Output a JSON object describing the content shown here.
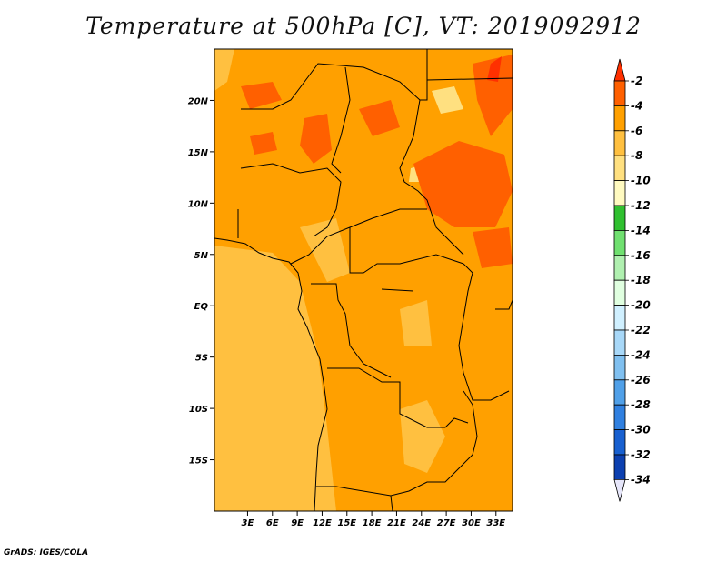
{
  "title": "Temperature at 500hPa [C], VT: 2019092912",
  "footer": "GrADS: IGES/COLA",
  "map": {
    "lon_range": [
      -1,
      35
    ],
    "lat_range": [
      -20,
      25
    ],
    "lat_ticks": [
      {
        "value": 20,
        "label": "20N"
      },
      {
        "value": 15,
        "label": "15N"
      },
      {
        "value": 10,
        "label": "10N"
      },
      {
        "value": 5,
        "label": "5N"
      },
      {
        "value": 0,
        "label": "EQ"
      },
      {
        "value": -5,
        "label": "5S"
      },
      {
        "value": -10,
        "label": "10S"
      },
      {
        "value": -15,
        "label": "15S"
      }
    ],
    "lon_ticks": [
      {
        "value": 3,
        "label": "3E"
      },
      {
        "value": 6,
        "label": "6E"
      },
      {
        "value": 9,
        "label": "9E"
      },
      {
        "value": 12,
        "label": "12E"
      },
      {
        "value": 15,
        "label": "15E"
      },
      {
        "value": 18,
        "label": "18E"
      },
      {
        "value": 21,
        "label": "21E"
      },
      {
        "value": 24,
        "label": "24E"
      },
      {
        "value": 27,
        "label": "27E"
      },
      {
        "value": 30,
        "label": "30E"
      },
      {
        "value": 33,
        "label": "33E"
      }
    ],
    "dominant_color": "#ffa000"
  },
  "colorbar": {
    "labels": [
      "-2",
      "-4",
      "-6",
      "-8",
      "-10",
      "-12",
      "-14",
      "-16",
      "-18",
      "-20",
      "-22",
      "-24",
      "-26",
      "-28",
      "-30",
      "-32",
      "-34"
    ],
    "top_triangle_color": "#ff3000",
    "bottom_triangle_color": "#e6e6fa",
    "colors": [
      "#ff6000",
      "#ffa000",
      "#ffc040",
      "#ffe080",
      "#fffac0",
      "#30c030",
      "#70e070",
      "#b0f0b0",
      "#e0ffe0",
      "#d0f0ff",
      "#a8d8f8",
      "#80c0f0",
      "#50a0e8",
      "#3080e0",
      "#1860d0",
      "#0c40b0",
      "#000070"
    ]
  }
}
